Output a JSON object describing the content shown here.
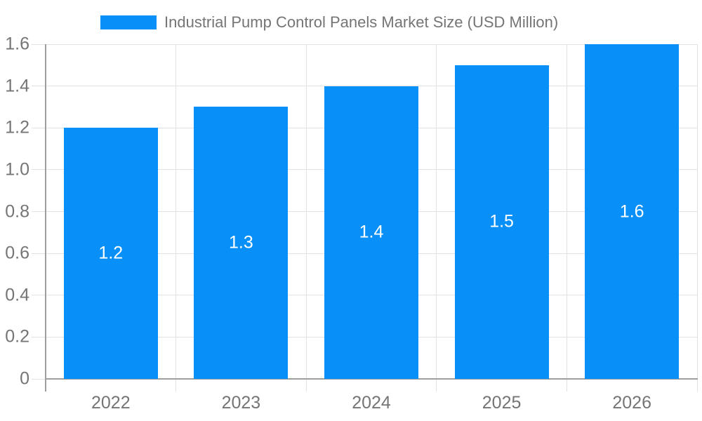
{
  "chart_data": {
    "type": "bar",
    "title": "Industrial Pump Control Panels Market Size (USD Million)",
    "categories": [
      "2022",
      "2023",
      "2024",
      "2025",
      "2026"
    ],
    "values": [
      1.2,
      1.3,
      1.4,
      1.5,
      1.6
    ],
    "value_labels": [
      "1.2",
      "1.3",
      "1.4",
      "1.5",
      "1.6"
    ],
    "xlabel": "",
    "ylabel": "",
    "ylim": [
      0,
      1.6
    ],
    "ytick_values": [
      0,
      0.2,
      0.4,
      0.6,
      0.8,
      1.0,
      1.2,
      1.4,
      1.6
    ],
    "ytick_labels": [
      "0",
      "0.2",
      "0.4",
      "0.6",
      "0.8",
      "1.0",
      "1.2",
      "1.4",
      "1.6"
    ],
    "grid": true,
    "legend_position": "top",
    "legend_entries": [
      "Industrial Pump Control Panels Market Size (USD Million)"
    ],
    "colors": {
      "bar": "#0990f8",
      "grid": "#e2e2e6",
      "axis": "#9e9e9e",
      "tick_text": "#757575",
      "legend_text": "#757575",
      "value_text": "#ffffff",
      "background": "#ffffff"
    }
  }
}
